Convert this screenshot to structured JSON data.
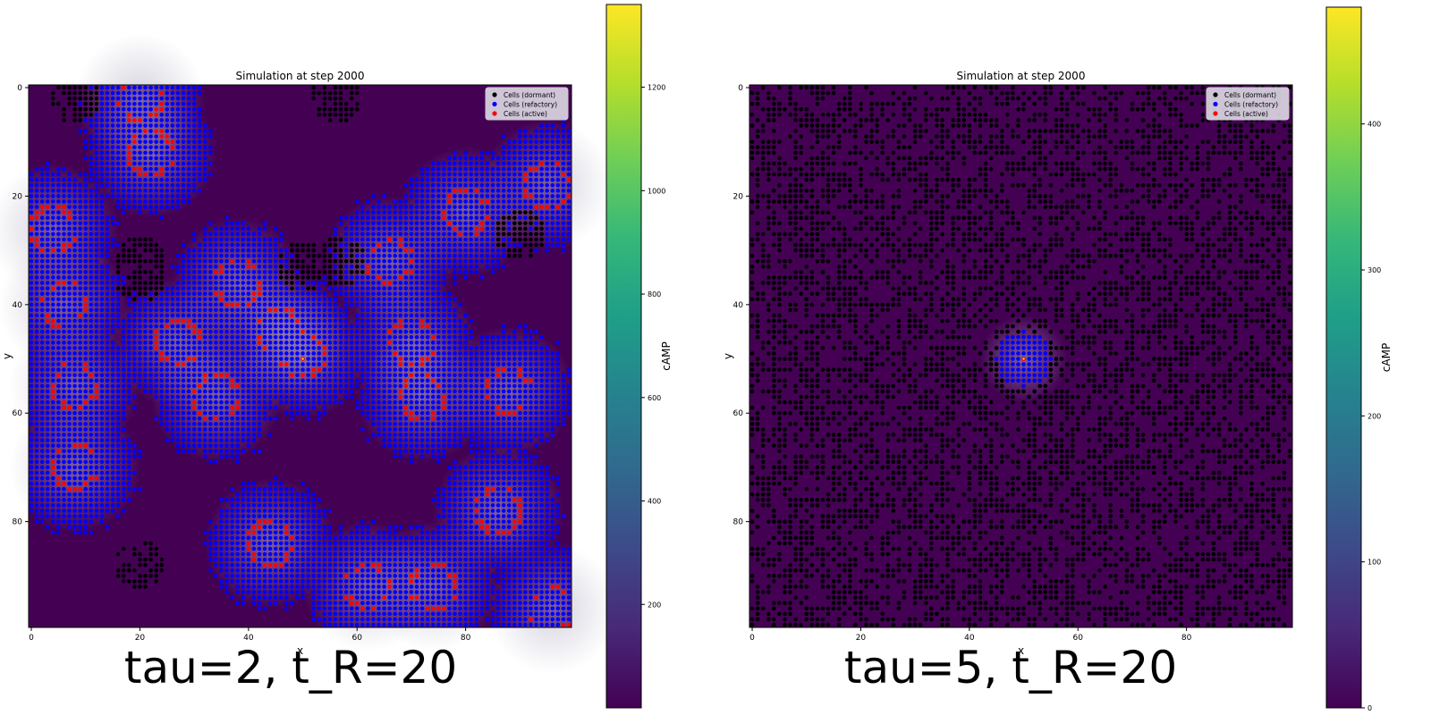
{
  "colormap": "viridis",
  "legend_colors": {
    "dormant": "#000000",
    "refactory": "#0000ff",
    "active": "#ff0000"
  },
  "chart_data": [
    {
      "type": "heatmap",
      "title": "Simulation at step 2000",
      "xlabel": "x",
      "ylabel": "y",
      "xlim": [
        0,
        100
      ],
      "ylim": [
        100,
        0
      ],
      "x_ticks": [
        "0",
        "20",
        "40",
        "60",
        "80"
      ],
      "y_ticks": [
        "0",
        "20",
        "40",
        "60",
        "80"
      ],
      "legend_position": "top-right",
      "legend": [
        "Cells (dormant)",
        "Cells (refactory)",
        "Cells (active)"
      ],
      "colorbar_label": "cAMP",
      "colorbar_range": [
        0,
        1360
      ],
      "colorbar_ticks": [
        "200",
        "400",
        "600",
        "800",
        "1000",
        "1200"
      ],
      "caption": "tau=2, t_R=20",
      "grid_size": 100,
      "source": [
        50,
        50
      ],
      "pattern": "refractory blue domains bordered by red active wave fronts with small black dormant patches",
      "active_wave_centers": [
        [
          4,
          26
        ],
        [
          6,
          40
        ],
        [
          8,
          55
        ],
        [
          8,
          70
        ],
        [
          20,
          2
        ],
        [
          22,
          12
        ],
        [
          27,
          47
        ],
        [
          34,
          57
        ],
        [
          38,
          36
        ],
        [
          44,
          84
        ],
        [
          46,
          45
        ],
        [
          50,
          49
        ],
        [
          62,
          92
        ],
        [
          66,
          32
        ],
        [
          70,
          47
        ],
        [
          72,
          57
        ],
        [
          74,
          92
        ],
        [
          80,
          23
        ],
        [
          86,
          78
        ],
        [
          88,
          56
        ],
        [
          95,
          18
        ],
        [
          96,
          96
        ]
      ],
      "dormant_patch_centers": [
        [
          20,
          32
        ],
        [
          20,
          35
        ],
        [
          50,
          33
        ],
        [
          57,
          32
        ],
        [
          56,
          2
        ],
        [
          90,
          27
        ],
        [
          20,
          88
        ],
        [
          8,
          2
        ]
      ]
    },
    {
      "type": "heatmap",
      "title": "Simulation at step 2000",
      "xlabel": "x",
      "ylabel": "y",
      "xlim": [
        0,
        100
      ],
      "ylim": [
        100,
        0
      ],
      "x_ticks": [
        "0",
        "20",
        "40",
        "60",
        "80"
      ],
      "y_ticks": [
        "0",
        "20",
        "40",
        "60",
        "80"
      ],
      "legend_position": "top-right",
      "legend": [
        "Cells (dormant)",
        "Cells (refactory)",
        "Cells (active)"
      ],
      "colorbar_label": "cAMP",
      "colorbar_range": [
        0,
        480
      ],
      "colorbar_ticks": [
        "0",
        "100",
        "200",
        "300",
        "400"
      ],
      "caption": "tau=5, t_R=20",
      "grid_size": 100,
      "source": [
        50,
        50
      ],
      "pattern": "randomly scattered black dormant cells; small blue refractory disc of radius about 5 around the central source",
      "dormant_fraction": 0.5,
      "refractory_disc_radius": 5
    }
  ]
}
